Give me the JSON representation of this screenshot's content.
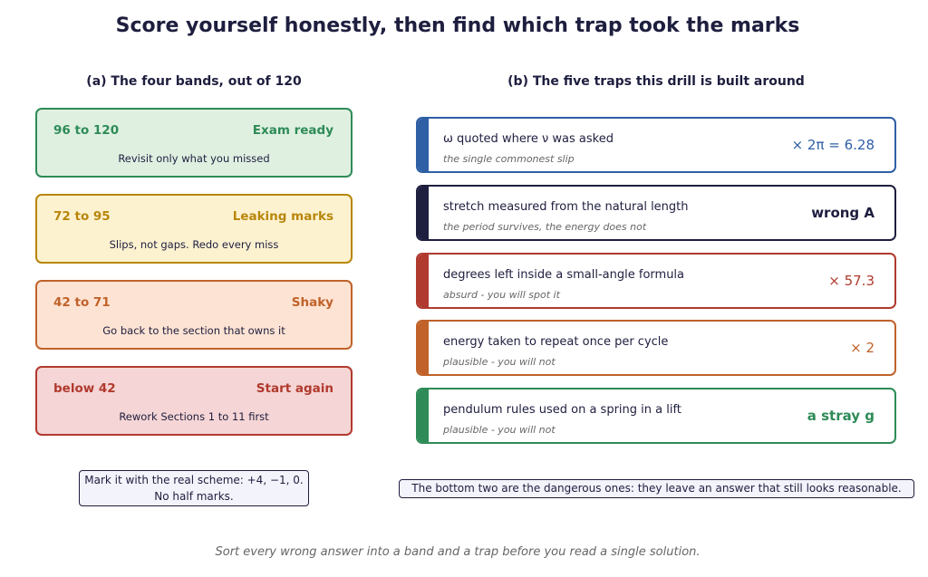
{
  "header": {
    "title": "Score yourself honestly, then find which trap took the marks"
  },
  "bands": {
    "heading": "(a) The four bands, out of 120",
    "items": [
      {
        "range": "96 to 120",
        "label": "Exam ready",
        "advice": "Revisit only what you missed",
        "color": "#2e8b57",
        "fill": "#dff0e1"
      },
      {
        "range": "72 to 95",
        "label": "Leaking marks",
        "advice": "Slips, not gaps. Redo every miss",
        "color": "#b8860b",
        "fill": "#fdf2d0"
      },
      {
        "range": "42 to 71",
        "label": "Shaky",
        "advice": "Go back to the section that owns it",
        "color": "#c0622a",
        "fill": "#fde3d3"
      },
      {
        "range": "below 42",
        "label": "Start again",
        "advice": "Rework Sections 1 to 11 first",
        "color": "#b03a2e",
        "fill": "#f5d5d5"
      }
    ],
    "note": "Mark it with the real scheme: +4, −1, 0. No half marks."
  },
  "traps": {
    "heading": "(b) The five traps this drill is built around",
    "items": [
      {
        "description": "ω quoted where ν was asked",
        "comment": "the single commonest slip",
        "tag": "× 2π = 6.28",
        "color": "#2f5fa5"
      },
      {
        "description": "stretch measured from the natural length",
        "comment": "the period survives, the energy does not",
        "tag": "wrong A",
        "color": "#1e1e3f"
      },
      {
        "description": "degrees left inside a small-angle formula",
        "comment": "absurd - you will spot it",
        "tag": "× 57.3",
        "color": "#b03a2e"
      },
      {
        "description": "energy taken to repeat once per cycle",
        "comment": "plausible - you will not",
        "tag": "× 2",
        "color": "#c0622a"
      },
      {
        "description": "pendulum rules used on a spring in a lift",
        "comment": "plausible - you will not",
        "tag": "a stray g",
        "color": "#2e8b57"
      }
    ],
    "note": "The bottom two are the dangerous ones: they leave an answer that still looks reasonable."
  },
  "footer": "Sort every wrong answer into a band and a trap before you read a single solution."
}
